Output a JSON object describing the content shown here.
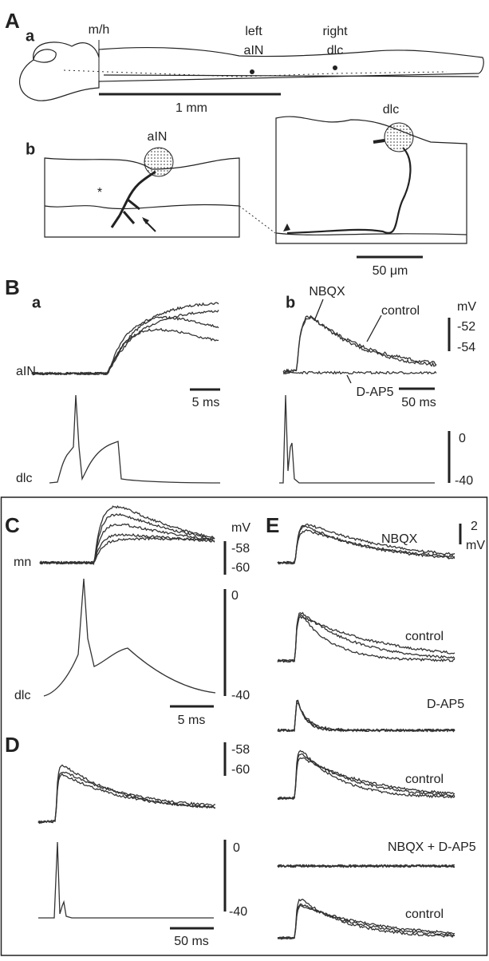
{
  "panel_A": {
    "label": "A",
    "a": {
      "label": "a",
      "boundary": "m/h",
      "left_aIN": [
        "left",
        "aIN"
      ],
      "right_dlc": [
        "right",
        "dlc"
      ],
      "scale": "1 mm"
    },
    "b": {
      "label": "b",
      "aIN": "aIN",
      "dlc": "dlc",
      "asterisk": "*",
      "scale": "50 μm"
    }
  },
  "panel_B": {
    "label": "B",
    "a": {
      "label": "a",
      "aIN": "aIN",
      "dlc": "dlc",
      "time_scale": "5 ms"
    },
    "b": {
      "label": "b",
      "NBQX": "NBQX",
      "control": "control",
      "unit": "mV",
      "v_top": [
        "-52",
        "-54"
      ],
      "D_AP5": "D-AP5",
      "time_scale": "50 ms",
      "v_bottom": [
        "0",
        "-40"
      ]
    }
  },
  "panel_C": {
    "label": "C",
    "unit": "mV",
    "v_top": [
      "-58",
      "-60"
    ],
    "mn": "mn",
    "dlc": "dlc",
    "v_bottom": [
      "0",
      "-40"
    ],
    "time_scale": "5 ms"
  },
  "panel_D": {
    "label": "D",
    "v_top": [
      "-58",
      "-60"
    ],
    "v_bottom": [
      "0",
      "-40"
    ],
    "time_scale": "50 ms"
  },
  "panel_E": {
    "label": "E",
    "NBQX": "NBQX",
    "scale": [
      "2",
      "mV"
    ],
    "control_1": "control",
    "D_AP5": "D-AP5",
    "control_2": "control",
    "NBQX_D_AP5": "NBQX + D-AP5",
    "control_3": "control"
  }
}
